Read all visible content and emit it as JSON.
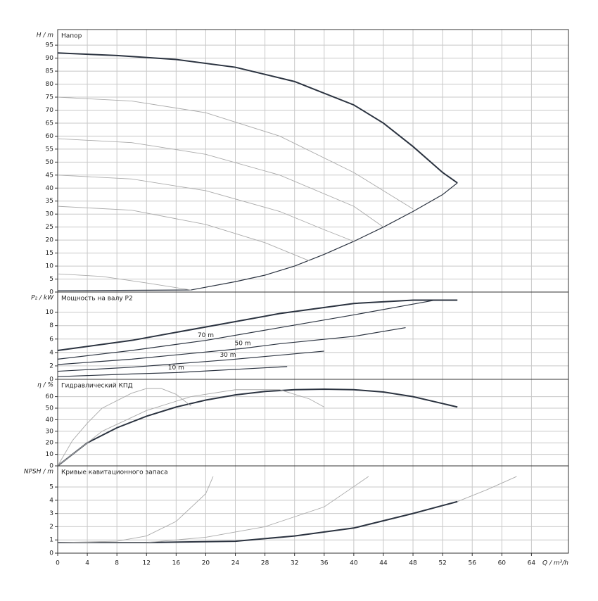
{
  "chart_data": [
    {
      "type": "line",
      "title": "Напор",
      "ylabel": "H / m",
      "xlim": [
        0,
        69
      ],
      "ylim": [
        0,
        101
      ],
      "yticks": [
        0,
        5,
        10,
        15,
        20,
        25,
        30,
        35,
        40,
        45,
        50,
        55,
        60,
        65,
        70,
        75,
        80,
        85,
        90,
        95
      ],
      "grid": true,
      "series": [
        {
          "color": "#2b3340",
          "x": [
            0,
            8,
            16,
            24,
            32,
            40,
            44,
            48,
            52,
            54
          ],
          "values": [
            92,
            91,
            89.5,
            86.5,
            81,
            72,
            65,
            56,
            46,
            42
          ]
        },
        {
          "color": "#2b3340",
          "x": [
            0,
            18,
            24,
            28,
            32,
            36,
            40,
            44,
            48,
            52,
            54
          ],
          "values": [
            0.5,
            0.8,
            4,
            6.5,
            10,
            14.5,
            19.5,
            25,
            31,
            37.5,
            42
          ]
        },
        {
          "color": "#aaaaaa",
          "x": [
            0,
            10,
            20,
            30,
            40,
            48
          ],
          "values": [
            75,
            73.5,
            69,
            60,
            46,
            32
          ]
        },
        {
          "color": "#aaaaaa",
          "x": [
            0,
            10,
            20,
            30,
            40,
            44
          ],
          "values": [
            59,
            57.5,
            53,
            45,
            33,
            25
          ]
        },
        {
          "color": "#aaaaaa",
          "x": [
            0,
            10,
            20,
            30,
            36,
            40
          ],
          "values": [
            45,
            43.5,
            39,
            31,
            24,
            19.5
          ]
        },
        {
          "color": "#aaaaaa",
          "x": [
            0,
            10,
            20,
            28,
            34
          ],
          "values": [
            33,
            31.5,
            26,
            19,
            12
          ]
        },
        {
          "color": "#aaaaaa",
          "x": [
            0,
            6,
            12,
            18
          ],
          "values": [
            7,
            6,
            3.5,
            0.8
          ]
        }
      ]
    },
    {
      "type": "line",
      "title": "Мощность на валу P2",
      "ylabel": "P₂ / kW",
      "xlim": [
        0,
        69
      ],
      "ylim": [
        0,
        13
      ],
      "yticks": [
        0,
        2,
        4,
        6,
        8,
        10
      ],
      "grid": true,
      "series": [
        {
          "color": "#2b3340",
          "x": [
            0,
            10,
            20,
            30,
            40,
            48,
            54
          ],
          "values": [
            4.3,
            5.8,
            7.8,
            9.8,
            11.3,
            11.8,
            11.8
          ]
        },
        {
          "name": "70 m",
          "color": "#2b3340",
          "x": [
            0,
            10,
            20,
            30,
            40,
            51
          ],
          "values": [
            3,
            4.3,
            5.8,
            7.7,
            9.6,
            11.8
          ]
        },
        {
          "name": "50 m",
          "color": "#2b3340",
          "x": [
            0,
            10,
            25,
            30,
            40,
            47
          ],
          "values": [
            2.2,
            3,
            4.6,
            5.3,
            6.4,
            7.7
          ]
        },
        {
          "name": "30 m",
          "color": "#2b3340",
          "x": [
            0,
            10,
            23,
            30,
            36
          ],
          "values": [
            1.2,
            1.8,
            2.9,
            3.6,
            4.2
          ]
        },
        {
          "name": "10 m",
          "color": "#2b3340",
          "x": [
            0,
            10,
            16,
            31
          ],
          "values": [
            0.4,
            0.8,
            1,
            1.9
          ]
        }
      ]
    },
    {
      "type": "line",
      "title": "Гидравлический КПД",
      "ylabel": "η / %",
      "xlim": [
        0,
        69
      ],
      "ylim": [
        0,
        75
      ],
      "yticks": [
        0,
        10,
        20,
        30,
        40,
        50,
        60
      ],
      "grid": true,
      "series": [
        {
          "color": "#2b3340",
          "x": [
            0,
            4,
            8,
            12,
            16,
            20,
            24,
            28,
            32,
            36,
            40,
            44,
            48,
            52,
            54
          ],
          "values": [
            0,
            20,
            33,
            43,
            51,
            57,
            61.5,
            64.5,
            66,
            66.5,
            66,
            64,
            60,
            54,
            51
          ]
        },
        {
          "color": "#aaaaaa",
          "x": [
            0,
            2,
            4,
            6,
            10,
            12,
            14,
            16,
            18
          ],
          "values": [
            0,
            22,
            37,
            50,
            63,
            67,
            67,
            62,
            52
          ]
        },
        {
          "color": "#aaaaaa",
          "x": [
            0,
            6,
            12,
            18,
            24,
            30,
            34,
            36
          ],
          "values": [
            0,
            30,
            48,
            60,
            66,
            66,
            58,
            51
          ]
        }
      ]
    },
    {
      "type": "line",
      "title": "Кривые кавитационного запаса",
      "ylabel": "NPSH / m",
      "xlabel": "Q / m³/h",
      "xlim": [
        0,
        69
      ],
      "ylim": [
        0,
        6.6
      ],
      "yticks": [
        0,
        1,
        2,
        3,
        4,
        5
      ],
      "xticks": [
        0,
        4,
        8,
        12,
        16,
        20,
        24,
        28,
        32,
        36,
        40,
        44,
        48,
        52,
        56,
        60,
        64
      ],
      "grid": true,
      "series": [
        {
          "color": "#2b3340",
          "x": [
            0,
            12,
            24,
            32,
            40,
            48,
            54
          ],
          "values": [
            0.8,
            0.8,
            0.9,
            1.3,
            1.9,
            3,
            3.9
          ]
        },
        {
          "color": "#aaaaaa",
          "x": [
            0,
            8,
            12,
            16,
            20,
            21
          ],
          "values": [
            0.8,
            0.9,
            1.3,
            2.4,
            4.5,
            5.8
          ]
        },
        {
          "color": "#aaaaaa",
          "x": [
            0,
            12,
            20,
            28,
            36,
            42
          ],
          "values": [
            0.8,
            0.8,
            1.2,
            2,
            3.5,
            5.8
          ]
        },
        {
          "color": "#aaaaaa",
          "x": [
            54,
            58,
            62
          ],
          "values": [
            3.9,
            4.8,
            5.8
          ]
        }
      ]
    }
  ]
}
